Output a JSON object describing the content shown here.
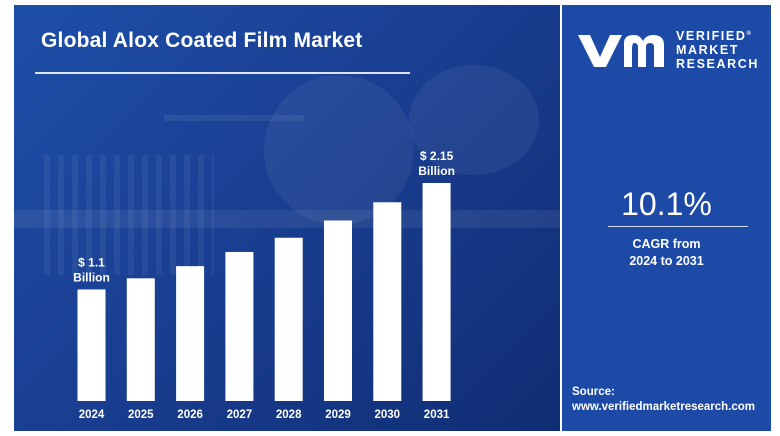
{
  "chart_data": {
    "type": "bar",
    "title": "Global Alox Coated Film Market",
    "categories": [
      "2024",
      "2025",
      "2026",
      "2027",
      "2028",
      "2029",
      "2030",
      "2031"
    ],
    "values": [
      1.1,
      1.21,
      1.33,
      1.47,
      1.61,
      1.78,
      1.96,
      2.15
    ],
    "unit": "Billion",
    "ylim": [
      0,
      2.15
    ],
    "grid": false,
    "bar_color": "#ffffff",
    "data_labels": [
      {
        "category": "2024",
        "value_text": "$ 1.1",
        "unit_text": "Billion"
      },
      {
        "category": "2031",
        "value_text": "$ 2.15",
        "unit_text": "Billion"
      }
    ]
  },
  "sidebar": {
    "logo": {
      "line1": "VERIFIED",
      "line2": "MARKET",
      "line3": "RESEARCH",
      "reg": "®"
    },
    "cagr_value": "10.1%",
    "cagr_label_line1": "CAGR from",
    "cagr_label_line2": "2024 to 2031",
    "source_label": "Source:",
    "source_url": "www.verifiedmarketresearch.com"
  },
  "colors": {
    "panel_blue": "#1a3f92",
    "sidebar_blue": "#1c4aa6",
    "text": "#ffffff"
  }
}
